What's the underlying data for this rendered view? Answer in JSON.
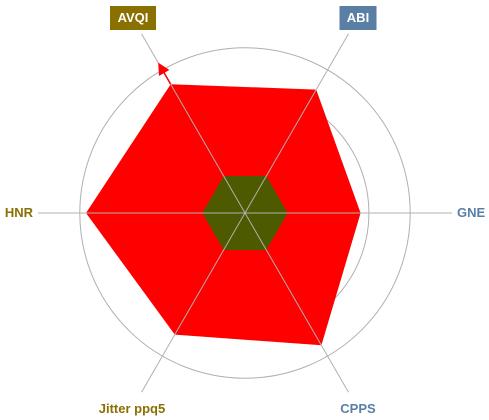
{
  "chart_data": {
    "type": "radar",
    "axes": [
      {
        "name": "AVQI",
        "angle_deg": 120,
        "color": "#8a7000",
        "style": "badge",
        "has_arrow": true
      },
      {
        "name": "ABI",
        "angle_deg": 60,
        "color": "#5a7fa5",
        "style": "badge",
        "has_arrow": false
      },
      {
        "name": "GNE",
        "angle_deg": 0,
        "color": "#5a7fa5",
        "style": "text",
        "has_arrow": false
      },
      {
        "name": "CPPS",
        "angle_deg": -60,
        "color": "#5a7fa5",
        "style": "text",
        "has_arrow": false
      },
      {
        "name": "Jitter ppq5",
        "angle_deg": -120,
        "color": "#8a7000",
        "style": "text",
        "has_arrow": false
      },
      {
        "name": "HNR",
        "angle_deg": 180,
        "color": "#8a7000",
        "style": "text",
        "has_arrow": false
      }
    ],
    "rings": [
      1,
      2,
      3,
      4
    ],
    "ring_max": 4,
    "series": [
      {
        "values": [
          3.6,
          3.45,
          2.8,
          3.7,
          3.4,
          3.85
        ],
        "color": "#ff0000"
      },
      {
        "values": [
          0.95,
          0.95,
          0.95,
          0.95,
          0.95,
          0.95
        ],
        "color": "#4d5a00"
      }
    ],
    "grid": true
  }
}
